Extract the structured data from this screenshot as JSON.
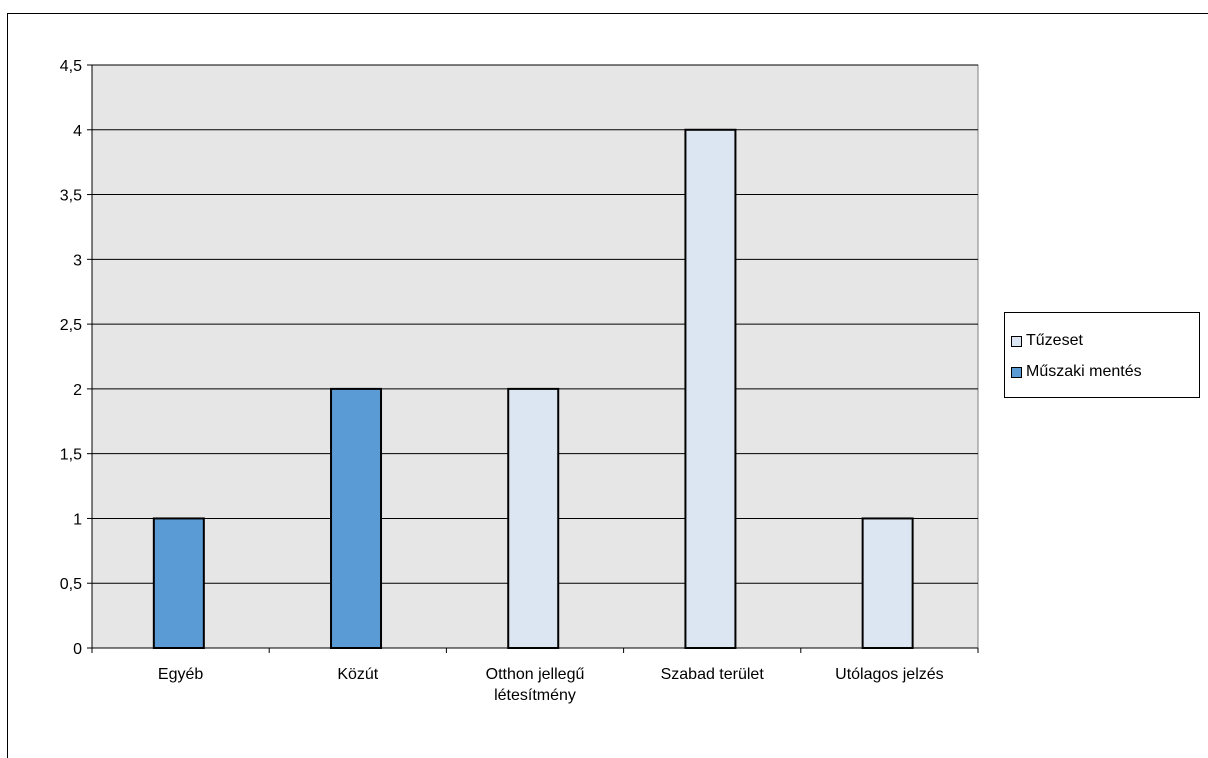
{
  "chart_data": {
    "type": "bar",
    "categories": [
      "Egyéb",
      "Közút",
      "Otthon jellegű\nlétesítmény",
      "Szabad terület",
      "Utólagos jelzés"
    ],
    "series": [
      {
        "name": "Tűzeset",
        "color": "#dce6f2",
        "values": [
          null,
          null,
          2,
          4,
          1
        ]
      },
      {
        "name": "Műszaki mentés",
        "color": "#5b9bd5",
        "values": [
          1,
          2,
          null,
          null,
          null
        ]
      }
    ],
    "yticks": [
      "0",
      "0,5",
      "1",
      "1,5",
      "2",
      "2,5",
      "3",
      "3,5",
      "4",
      "4,5"
    ],
    "ylim": [
      0,
      4.5
    ],
    "grid": true,
    "legend_position": "right",
    "plot_background": "#e6e6e6"
  }
}
